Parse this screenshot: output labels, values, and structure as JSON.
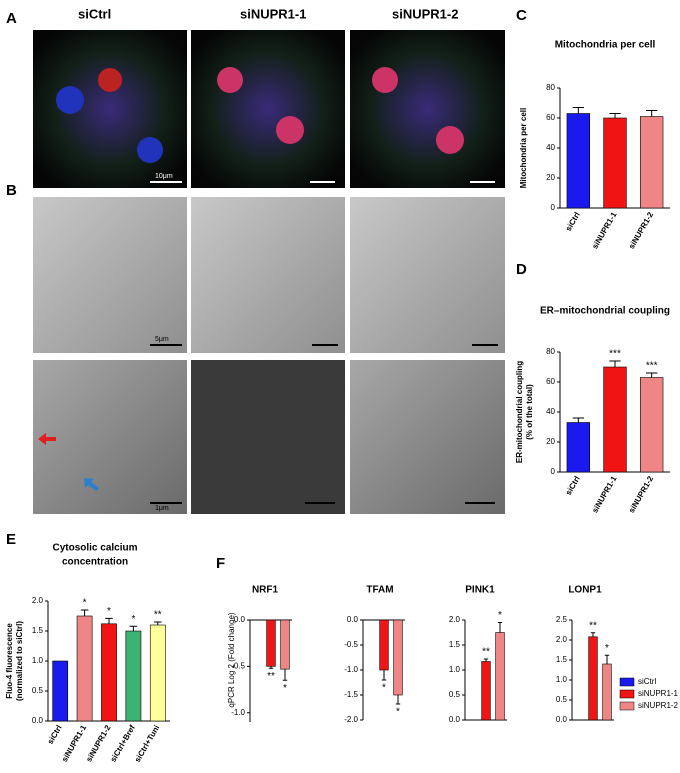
{
  "panel_labels": [
    "A",
    "B",
    "C",
    "D",
    "E",
    "F"
  ],
  "image_columns": [
    "siCtrl",
    "siNUPR1-1",
    "siNUPR1-2"
  ],
  "scale_bars": [
    "10μm",
    "5μm",
    "1μm"
  ],
  "figure_f": {
    "ylabel": "qPCR Log 2 (Fold change)",
    "legend": [
      {
        "name": "siCtrl",
        "color": "#1a1aee"
      },
      {
        "name": "siNUPR1-1",
        "color": "#f01414"
      },
      {
        "name": "siNUPR1-2",
        "color": "#f08585"
      }
    ]
  },
  "chart_data": [
    {
      "type": "bar",
      "title": "Mitochondria per cell",
      "ylabel": [
        "Mitochondria per cell"
      ],
      "categories": [
        "siCtrl",
        "siNUPR1-1",
        "siNUPR1-2"
      ],
      "values": [
        63,
        60,
        61
      ],
      "errors": [
        4,
        3,
        4
      ],
      "colors": [
        "#1a1aee",
        "#f01414",
        "#f08585"
      ],
      "ylim": [
        0,
        80
      ],
      "yticks": [
        0,
        20,
        40,
        60,
        80
      ]
    },
    {
      "type": "bar",
      "title": "ER–mitochondrial coupling",
      "ylabel": [
        "ER-mitochondrial coupling",
        "(% of the total)"
      ],
      "categories": [
        "siCtrl",
        "siNUPR1-1",
        "siNUPR1-2"
      ],
      "values": [
        33,
        70,
        63
      ],
      "errors": [
        3,
        4,
        3
      ],
      "annotations": [
        null,
        "***",
        "***"
      ],
      "colors": [
        "#1a1aee",
        "#f01414",
        "#f08585"
      ],
      "ylim": [
        0,
        80
      ],
      "yticks": [
        0,
        20,
        40,
        60,
        80
      ]
    },
    {
      "type": "bar",
      "title": [
        "Cytosolic calcium",
        "concentration"
      ],
      "ylabel": [
        "Fluo-4 fluorescence",
        "(normalized to siCtrl)"
      ],
      "categories": [
        "siCtrl",
        "siNUPR1-1",
        "siNUPR1-2",
        "siCtrl+Bref",
        "siCtrl+Tuni"
      ],
      "values": [
        1.0,
        1.75,
        1.62,
        1.5,
        1.6
      ],
      "errors": [
        null,
        0.1,
        0.09,
        0.08,
        0.05
      ],
      "annotations": [
        null,
        "*",
        "*",
        "*",
        "**"
      ],
      "colors": [
        "#1a1aee",
        "#f08585",
        "#f01414",
        "#3cb371",
        "#ffff99"
      ],
      "ylim": [
        0,
        2
      ],
      "yticks": [
        {
          "value": 0,
          "label": "0.0"
        },
        0.5,
        {
          "value": 1,
          "label": "1.0"
        },
        1.5,
        {
          "value": 2,
          "label": "2.0"
        }
      ]
    },
    {
      "type": "bar",
      "title": "NRF1",
      "values": [
        0,
        -0.5,
        -0.53
      ],
      "errors": [
        null,
        0.02,
        0.12
      ],
      "annotations": [
        null,
        "**",
        "*"
      ],
      "colors": [
        "#1a1aee",
        "#f01414",
        "#f08585"
      ],
      "ylim": [
        -1.1,
        0
      ],
      "yticks": [
        {
          "value": 0,
          "label": "0.0"
        },
        -0.5,
        {
          "value": -1,
          "label": "-1.0"
        }
      ]
    },
    {
      "type": "bar",
      "title": "TFAM",
      "values": [
        0,
        -1.0,
        -1.5
      ],
      "errors": [
        null,
        0.2,
        0.18
      ],
      "annotations": [
        null,
        "*",
        "*"
      ],
      "colors": [
        "#1a1aee",
        "#f01414",
        "#f08585"
      ],
      "ylim": [
        -2,
        0
      ],
      "yticks": [
        {
          "value": 0,
          "label": "0.0"
        },
        -0.5,
        {
          "value": -1,
          "label": "-1.0"
        },
        -1.5,
        {
          "value": -2,
          "label": "-2.0"
        }
      ]
    },
    {
      "type": "bar",
      "title": "PINK1",
      "values": [
        0,
        1.17,
        1.75
      ],
      "errors": [
        null,
        0.05,
        0.2
      ],
      "annotations": [
        null,
        "**",
        "*"
      ],
      "colors": [
        "#1a1aee",
        "#f01414",
        "#f08585"
      ],
      "ylim": [
        0,
        2
      ],
      "yticks": [
        {
          "value": 0,
          "label": "0.0"
        },
        0.5,
        {
          "value": 1,
          "label": "1.0"
        },
        1.5,
        {
          "value": 2,
          "label": "2.0"
        }
      ]
    },
    {
      "type": "bar",
      "title": "LONP1",
      "values": [
        0,
        2.08,
        1.4
      ],
      "errors": [
        null,
        0.1,
        0.22
      ],
      "annotations": [
        null,
        "**",
        "*"
      ],
      "colors": [
        "#1a1aee",
        "#f01414",
        "#f08585"
      ],
      "ylim": [
        0,
        2.5
      ],
      "yticks": [
        {
          "value": 0,
          "label": "0.0"
        },
        0.5,
        {
          "value": 1,
          "label": "1.0"
        },
        1.5,
        {
          "value": 2,
          "label": "2.0"
        },
        2.5
      ]
    }
  ]
}
